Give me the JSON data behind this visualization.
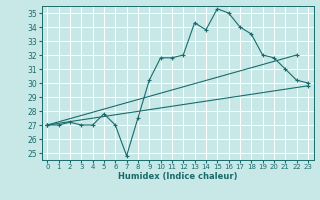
{
  "xlabel": "Humidex (Indice chaleur)",
  "background_color": "#c8e8e8",
  "grid_color": "#ffffff",
  "line_color": "#1a6b6b",
  "xlim": [
    -0.5,
    23.5
  ],
  "ylim": [
    24.5,
    35.5
  ],
  "xticks": [
    0,
    1,
    2,
    3,
    4,
    5,
    6,
    7,
    8,
    9,
    10,
    11,
    12,
    13,
    14,
    15,
    16,
    17,
    18,
    19,
    20,
    21,
    22,
    23
  ],
  "yticks": [
    25,
    26,
    27,
    28,
    29,
    30,
    31,
    32,
    33,
    34,
    35
  ],
  "series_main": [
    27.0,
    27.0,
    27.2,
    27.0,
    27.0,
    27.8,
    27.0,
    24.8,
    27.5,
    30.2,
    31.8,
    31.8,
    32.0,
    34.3,
    33.8,
    35.3,
    35.0,
    34.0,
    33.5,
    32.0,
    31.8,
    31.0,
    30.2,
    30.0
  ],
  "series_line1_x": [
    0,
    23
  ],
  "series_line1_y": [
    27.0,
    31.8
  ],
  "series_line2_x": [
    0,
    23
  ],
  "series_line2_y": [
    27.0,
    29.8
  ]
}
